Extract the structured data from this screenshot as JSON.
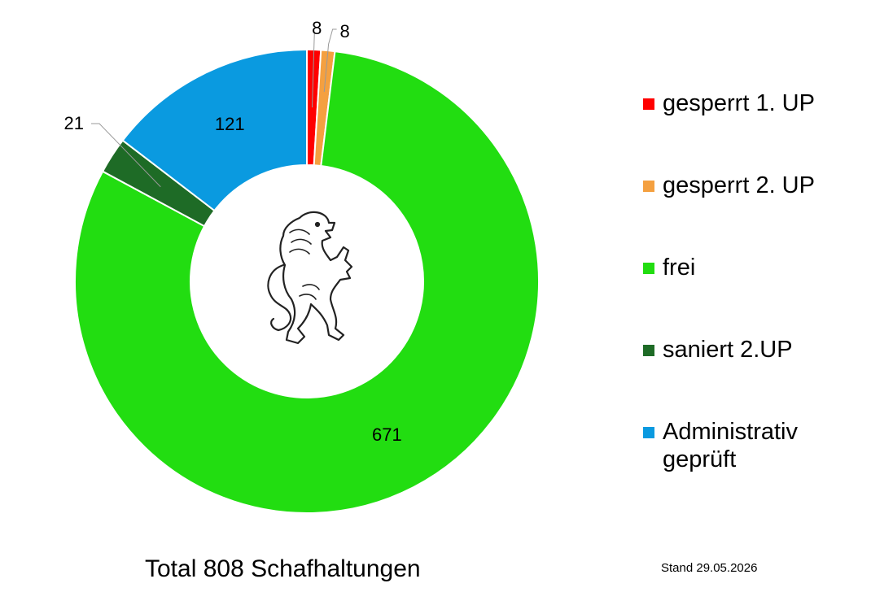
{
  "chart_data": {
    "type": "pie",
    "variant": "donut",
    "title": "",
    "categories": [
      "gesperrt 1. UP",
      "gesperrt 2. UP",
      "frei",
      "saniert 2.UP",
      "Administrativ geprüft"
    ],
    "values": [
      8,
      8,
      671,
      21,
      121
    ],
    "colors": [
      "#ff0000",
      "#f4a040",
      "#22dd11",
      "#1e6b26",
      "#0a9ae0"
    ],
    "data_labels": [
      "8",
      "8",
      "671",
      "21",
      "121"
    ],
    "legend_position": "right"
  },
  "legend": {
    "items": [
      {
        "label": "gesperrt 1. UP",
        "color": "#ff0000"
      },
      {
        "label": "gesperrt 2. UP",
        "color": "#f4a040"
      },
      {
        "label": "frei",
        "color": "#22dd11"
      },
      {
        "label": "saniert 2.UP",
        "color": "#1e6b26"
      },
      {
        "label": "Administrativ geprüft",
        "color": "#0a9ae0"
      }
    ]
  },
  "caption": "Total 808 Schafhaltungen",
  "stand": "Stand 29.05.2026",
  "center_icon": "lion-crest-icon"
}
